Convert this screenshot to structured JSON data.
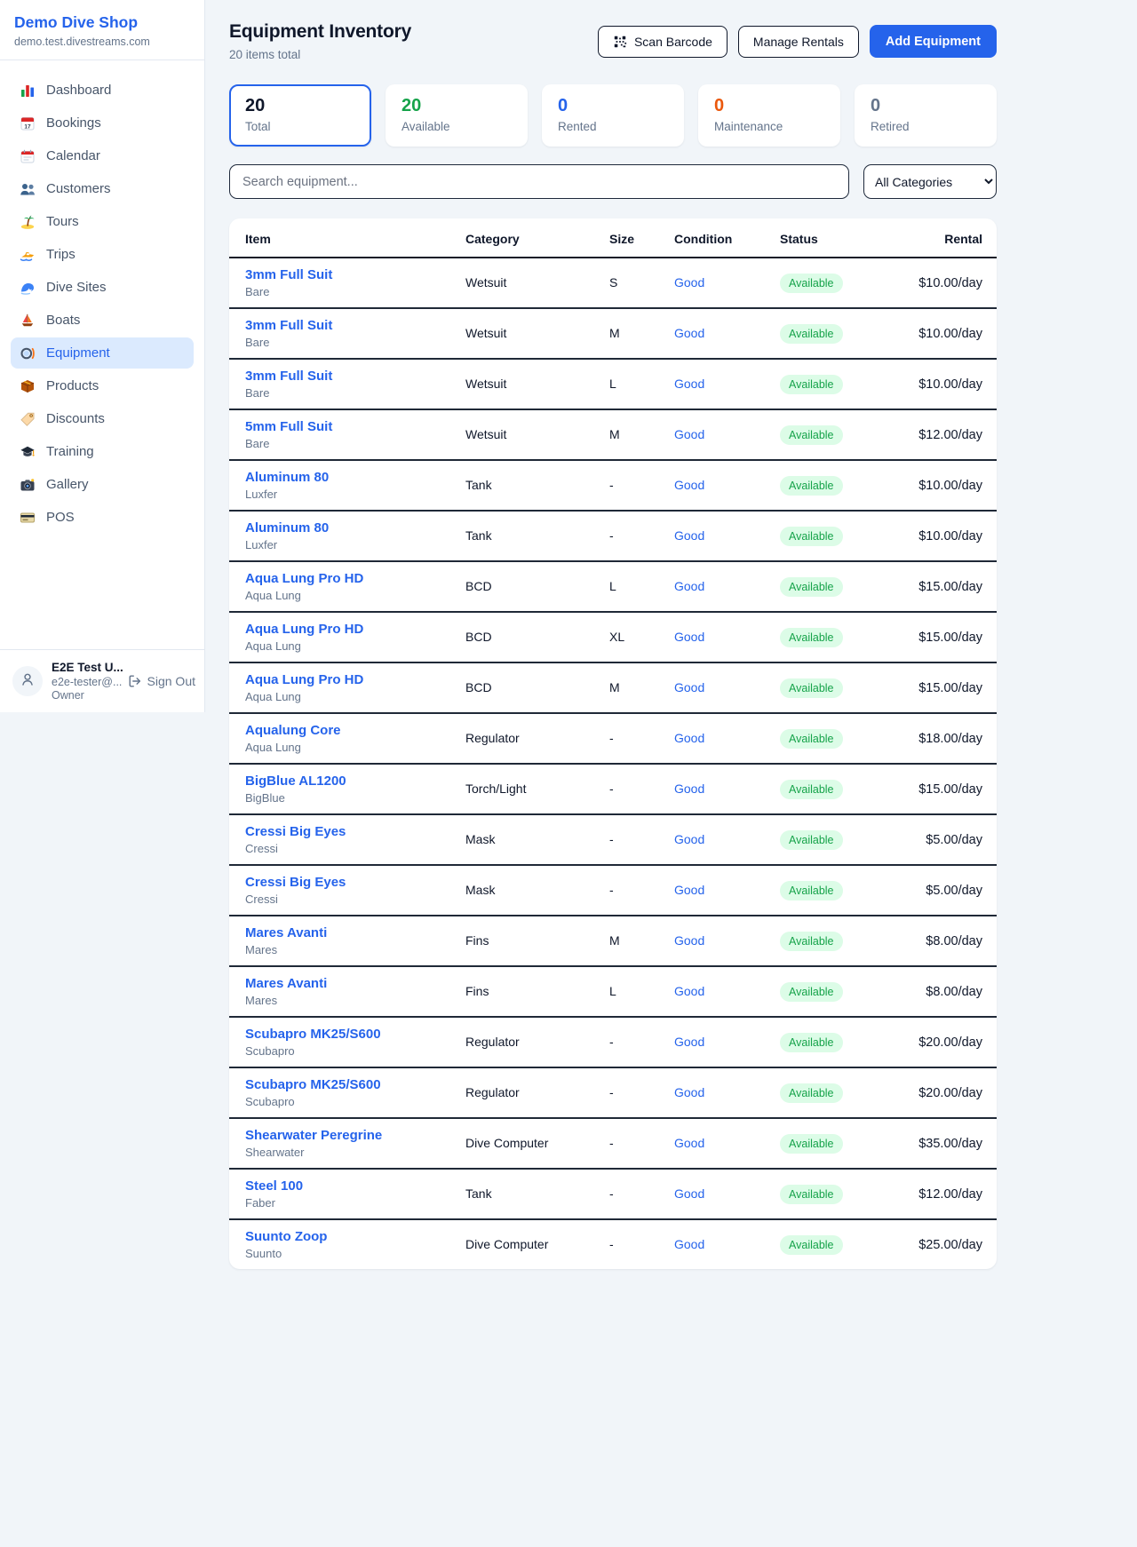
{
  "colors": {
    "accent": "#2563eb",
    "available_green": "#16a34a",
    "rented_blue": "#2563eb",
    "maintenance_orange": "#ea580c",
    "retired_gray": "#64748b",
    "badge_bg": "#dcfce7",
    "total_dark": "#0f172a"
  },
  "sidebar": {
    "brand": {
      "name": "Demo Dive Shop",
      "domain": "demo.test.divestreams.com"
    },
    "nav": [
      {
        "label": "Dashboard",
        "icon": "dashboard-icon",
        "active": false
      },
      {
        "label": "Bookings",
        "icon": "bookings-icon",
        "active": false
      },
      {
        "label": "Calendar",
        "icon": "calendar-icon",
        "active": false
      },
      {
        "label": "Customers",
        "icon": "customers-icon",
        "active": false
      },
      {
        "label": "Tours",
        "icon": "tours-icon",
        "active": false
      },
      {
        "label": "Trips",
        "icon": "trips-icon",
        "active": false
      },
      {
        "label": "Dive Sites",
        "icon": "dive-sites-icon",
        "active": false
      },
      {
        "label": "Boats",
        "icon": "boats-icon",
        "active": false
      },
      {
        "label": "Equipment",
        "icon": "equipment-icon",
        "active": true
      },
      {
        "label": "Products",
        "icon": "products-icon",
        "active": false
      },
      {
        "label": "Discounts",
        "icon": "discounts-icon",
        "active": false
      },
      {
        "label": "Training",
        "icon": "training-icon",
        "active": false
      },
      {
        "label": "Gallery",
        "icon": "gallery-icon",
        "active": false
      },
      {
        "label": "POS",
        "icon": "pos-icon",
        "active": false
      }
    ],
    "user": {
      "name": "E2E Test U...",
      "email": "e2e-tester@...",
      "role": "Owner",
      "sign_out": "Sign Out"
    }
  },
  "header": {
    "title": "Equipment Inventory",
    "subtitle": "20 items total",
    "buttons": {
      "scan": "Scan Barcode",
      "manage": "Manage Rentals",
      "add": "Add Equipment"
    }
  },
  "stats": [
    {
      "value": "20",
      "label": "Total",
      "color": "#0f172a",
      "selected": true
    },
    {
      "value": "20",
      "label": "Available",
      "color": "#16a34a",
      "selected": false
    },
    {
      "value": "0",
      "label": "Rented",
      "color": "#2563eb",
      "selected": false
    },
    {
      "value": "0",
      "label": "Maintenance",
      "color": "#ea580c",
      "selected": false
    },
    {
      "value": "0",
      "label": "Retired",
      "color": "#64748b",
      "selected": false
    }
  ],
  "filters": {
    "search_placeholder": "Search equipment...",
    "category_selected": "All Categories"
  },
  "table": {
    "columns": [
      "Item",
      "Category",
      "Size",
      "Condition",
      "Status",
      "Rental"
    ],
    "rows": [
      {
        "name": "3mm Full Suit",
        "brand": "Bare",
        "category": "Wetsuit",
        "size": "S",
        "condition": "Good",
        "status": "Available",
        "rental": "$10.00/day"
      },
      {
        "name": "3mm Full Suit",
        "brand": "Bare",
        "category": "Wetsuit",
        "size": "M",
        "condition": "Good",
        "status": "Available",
        "rental": "$10.00/day"
      },
      {
        "name": "3mm Full Suit",
        "brand": "Bare",
        "category": "Wetsuit",
        "size": "L",
        "condition": "Good",
        "status": "Available",
        "rental": "$10.00/day"
      },
      {
        "name": "5mm Full Suit",
        "brand": "Bare",
        "category": "Wetsuit",
        "size": "M",
        "condition": "Good",
        "status": "Available",
        "rental": "$12.00/day"
      },
      {
        "name": "Aluminum 80",
        "brand": "Luxfer",
        "category": "Tank",
        "size": "-",
        "condition": "Good",
        "status": "Available",
        "rental": "$10.00/day"
      },
      {
        "name": "Aluminum 80",
        "brand": "Luxfer",
        "category": "Tank",
        "size": "-",
        "condition": "Good",
        "status": "Available",
        "rental": "$10.00/day"
      },
      {
        "name": "Aqua Lung Pro HD",
        "brand": "Aqua Lung",
        "category": "BCD",
        "size": "L",
        "condition": "Good",
        "status": "Available",
        "rental": "$15.00/day"
      },
      {
        "name": "Aqua Lung Pro HD",
        "brand": "Aqua Lung",
        "category": "BCD",
        "size": "XL",
        "condition": "Good",
        "status": "Available",
        "rental": "$15.00/day"
      },
      {
        "name": "Aqua Lung Pro HD",
        "brand": "Aqua Lung",
        "category": "BCD",
        "size": "M",
        "condition": "Good",
        "status": "Available",
        "rental": "$15.00/day"
      },
      {
        "name": "Aqualung Core",
        "brand": "Aqua Lung",
        "category": "Regulator",
        "size": "-",
        "condition": "Good",
        "status": "Available",
        "rental": "$18.00/day"
      },
      {
        "name": "BigBlue AL1200",
        "brand": "BigBlue",
        "category": "Torch/Light",
        "size": "-",
        "condition": "Good",
        "status": "Available",
        "rental": "$15.00/day"
      },
      {
        "name": "Cressi Big Eyes",
        "brand": "Cressi",
        "category": "Mask",
        "size": "-",
        "condition": "Good",
        "status": "Available",
        "rental": "$5.00/day"
      },
      {
        "name": "Cressi Big Eyes",
        "brand": "Cressi",
        "category": "Mask",
        "size": "-",
        "condition": "Good",
        "status": "Available",
        "rental": "$5.00/day"
      },
      {
        "name": "Mares Avanti",
        "brand": "Mares",
        "category": "Fins",
        "size": "M",
        "condition": "Good",
        "status": "Available",
        "rental": "$8.00/day"
      },
      {
        "name": "Mares Avanti",
        "brand": "Mares",
        "category": "Fins",
        "size": "L",
        "condition": "Good",
        "status": "Available",
        "rental": "$8.00/day"
      },
      {
        "name": "Scubapro MK25/S600",
        "brand": "Scubapro",
        "category": "Regulator",
        "size": "-",
        "condition": "Good",
        "status": "Available",
        "rental": "$20.00/day"
      },
      {
        "name": "Scubapro MK25/S600",
        "brand": "Scubapro",
        "category": "Regulator",
        "size": "-",
        "condition": "Good",
        "status": "Available",
        "rental": "$20.00/day"
      },
      {
        "name": "Shearwater Peregrine",
        "brand": "Shearwater",
        "category": "Dive Computer",
        "size": "-",
        "condition": "Good",
        "status": "Available",
        "rental": "$35.00/day"
      },
      {
        "name": "Steel 100",
        "brand": "Faber",
        "category": "Tank",
        "size": "-",
        "condition": "Good",
        "status": "Available",
        "rental": "$12.00/day"
      },
      {
        "name": "Suunto Zoop",
        "brand": "Suunto",
        "category": "Dive Computer",
        "size": "-",
        "condition": "Good",
        "status": "Available",
        "rental": "$25.00/day"
      }
    ]
  }
}
